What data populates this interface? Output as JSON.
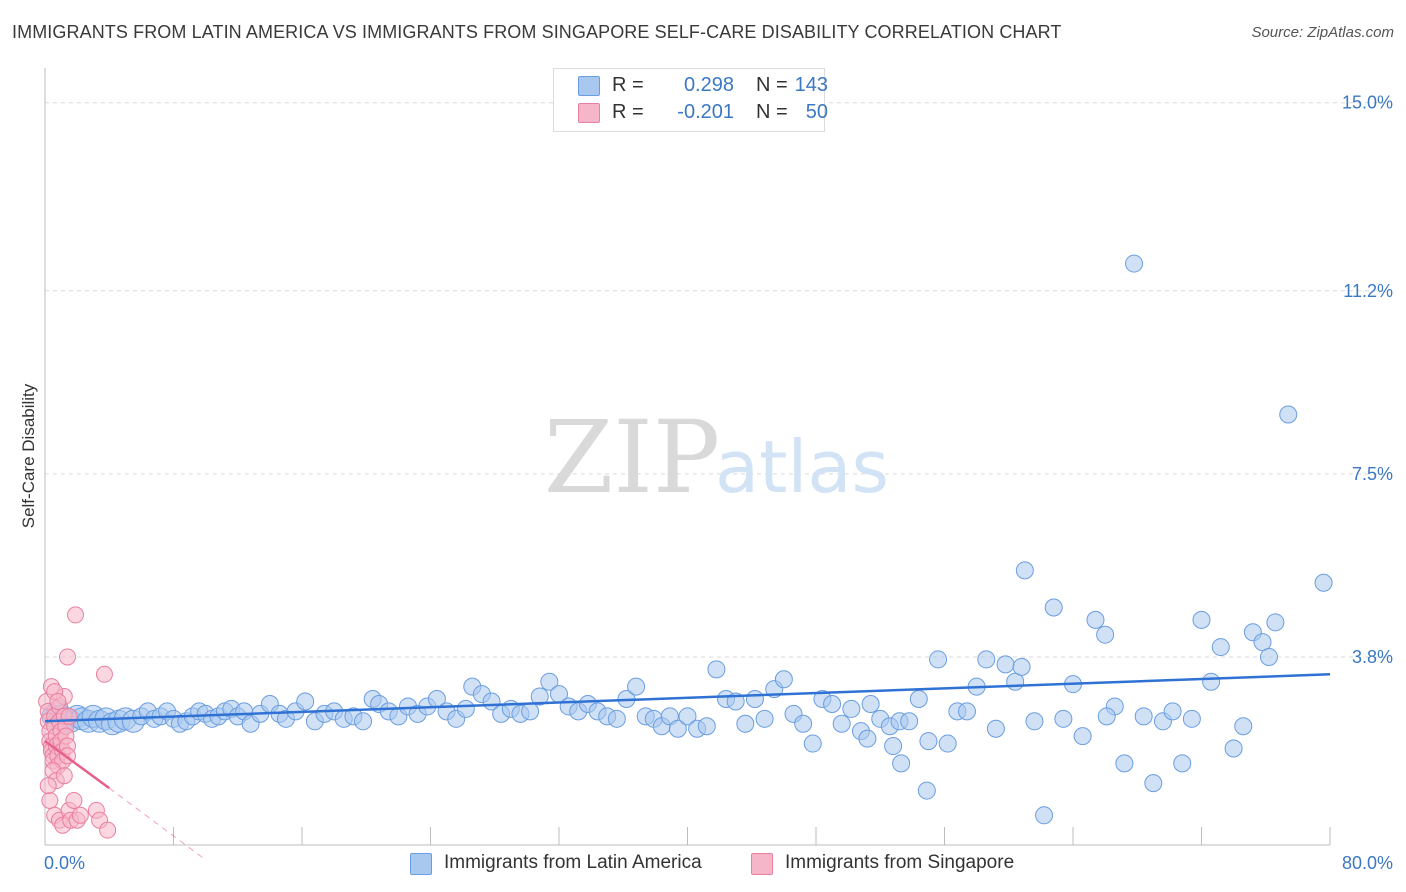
{
  "header": {
    "title": "IMMIGRANTS FROM LATIN AMERICA VS IMMIGRANTS FROM SINGAPORE SELF-CARE DISABILITY CORRELATION CHART",
    "source": "Source: ZipAtlas.com"
  },
  "watermark": {
    "zip": "ZIP",
    "atlas": "atlas"
  },
  "legend": {
    "r_label": "R =",
    "n_label": "N =",
    "series1": {
      "r": "0.298",
      "n": "143"
    },
    "series2": {
      "r": "-0.201",
      "n": "50"
    }
  },
  "bottom_legend": {
    "series1": "Immigrants from Latin America",
    "series2": "Immigrants from Singapore"
  },
  "colors": {
    "series1_fill": "#a9c8ef",
    "series1_stroke": "#6a9ee0",
    "series1_line": "#2f72d4",
    "series2_fill": "#f6b6c9",
    "series2_stroke": "#ea7fa0",
    "series2_line": "#e8608a",
    "axis_text": "#3b78c4",
    "grid": "#d9d9d9"
  },
  "chart_data": {
    "type": "scatter",
    "title": "IMMIGRANTS FROM LATIN AMERICA VS IMMIGRANTS FROM SINGAPORE SELF-CARE DISABILITY CORRELATION CHART",
    "xlabel": "",
    "ylabel": "Self-Care Disability",
    "xlim": [
      0,
      80
    ],
    "ylim": [
      0,
      15.5
    ],
    "x_tick_labels": [
      "0.0%",
      "80.0%"
    ],
    "y_ticks": [
      3.8,
      7.5,
      11.2,
      15.0
    ],
    "y_tick_labels": [
      "3.8%",
      "7.5%",
      "11.2%",
      "15.0%"
    ],
    "grid": true,
    "legend_position": "top-center",
    "series": [
      {
        "name": "Immigrants from Latin America",
        "r": 0.298,
        "n": 143,
        "trend": {
          "x": [
            0,
            80
          ],
          "y": [
            2.5,
            3.45
          ]
        },
        "points": [
          [
            0.5,
            2.6
          ],
          [
            0.8,
            2.7
          ],
          [
            1.0,
            2.6
          ],
          [
            1.3,
            2.55
          ],
          [
            1.6,
            2.5
          ],
          [
            2.0,
            2.6
          ],
          [
            2.3,
            2.55
          ],
          [
            2.7,
            2.5
          ],
          [
            3.0,
            2.6
          ],
          [
            3.4,
            2.5
          ],
          [
            3.8,
            2.55
          ],
          [
            4.2,
            2.45
          ],
          [
            4.6,
            2.5
          ],
          [
            5.0,
            2.55
          ],
          [
            5.5,
            2.5
          ],
          [
            6.0,
            2.6
          ],
          [
            6.4,
            2.7
          ],
          [
            6.8,
            2.55
          ],
          [
            7.2,
            2.6
          ],
          [
            7.6,
            2.7
          ],
          [
            8.0,
            2.55
          ],
          [
            8.4,
            2.45
          ],
          [
            8.8,
            2.5
          ],
          [
            9.2,
            2.6
          ],
          [
            9.6,
            2.7
          ],
          [
            10.0,
            2.65
          ],
          [
            10.4,
            2.55
          ],
          [
            10.8,
            2.6
          ],
          [
            11.2,
            2.7
          ],
          [
            11.6,
            2.75
          ],
          [
            12.0,
            2.6
          ],
          [
            12.4,
            2.7
          ],
          [
            12.8,
            2.45
          ],
          [
            13.4,
            2.65
          ],
          [
            14.0,
            2.85
          ],
          [
            14.6,
            2.65
          ],
          [
            15.0,
            2.55
          ],
          [
            15.6,
            2.7
          ],
          [
            16.2,
            2.9
          ],
          [
            16.8,
            2.5
          ],
          [
            17.4,
            2.65
          ],
          [
            18.0,
            2.7
          ],
          [
            18.6,
            2.55
          ],
          [
            19.2,
            2.6
          ],
          [
            19.8,
            2.5
          ],
          [
            20.4,
            2.95
          ],
          [
            20.8,
            2.85
          ],
          [
            21.4,
            2.7
          ],
          [
            22.0,
            2.6
          ],
          [
            22.6,
            2.8
          ],
          [
            23.2,
            2.65
          ],
          [
            23.8,
            2.8
          ],
          [
            24.4,
            2.95
          ],
          [
            25.0,
            2.7
          ],
          [
            25.6,
            2.55
          ],
          [
            26.2,
            2.75
          ],
          [
            26.6,
            3.2
          ],
          [
            27.2,
            3.05
          ],
          [
            27.8,
            2.9
          ],
          [
            28.4,
            2.65
          ],
          [
            29.0,
            2.75
          ],
          [
            29.6,
            2.65
          ],
          [
            30.2,
            2.7
          ],
          [
            30.8,
            3.0
          ],
          [
            31.4,
            3.3
          ],
          [
            32.0,
            3.05
          ],
          [
            32.6,
            2.8
          ],
          [
            33.2,
            2.7
          ],
          [
            33.8,
            2.85
          ],
          [
            34.4,
            2.7
          ],
          [
            35.0,
            2.6
          ],
          [
            35.6,
            2.55
          ],
          [
            36.2,
            2.95
          ],
          [
            36.8,
            3.2
          ],
          [
            37.4,
            2.6
          ],
          [
            37.9,
            2.55
          ],
          [
            38.4,
            2.4
          ],
          [
            38.9,
            2.6
          ],
          [
            39.4,
            2.35
          ],
          [
            40.0,
            2.6
          ],
          [
            40.6,
            2.35
          ],
          [
            41.2,
            2.4
          ],
          [
            41.8,
            3.55
          ],
          [
            42.4,
            2.95
          ],
          [
            43.0,
            2.9
          ],
          [
            43.6,
            2.45
          ],
          [
            44.2,
            2.95
          ],
          [
            44.8,
            2.55
          ],
          [
            45.4,
            3.15
          ],
          [
            46.0,
            3.35
          ],
          [
            46.6,
            2.65
          ],
          [
            47.2,
            2.45
          ],
          [
            47.8,
            2.05
          ],
          [
            48.4,
            2.95
          ],
          [
            49.0,
            2.85
          ],
          [
            49.6,
            2.45
          ],
          [
            50.2,
            2.75
          ],
          [
            50.8,
            2.3
          ],
          [
            51.4,
            2.85
          ],
          [
            52.0,
            2.55
          ],
          [
            52.6,
            2.4
          ],
          [
            53.2,
            2.5
          ],
          [
            53.8,
            2.5
          ],
          [
            54.4,
            2.95
          ],
          [
            55.0,
            2.1
          ],
          [
            55.6,
            3.75
          ],
          [
            56.2,
            2.05
          ],
          [
            56.8,
            2.7
          ],
          [
            57.4,
            2.7
          ],
          [
            58.0,
            3.2
          ],
          [
            58.6,
            3.75
          ],
          [
            59.2,
            2.35
          ],
          [
            59.8,
            3.65
          ],
          [
            60.4,
            3.3
          ],
          [
            61.0,
            5.55
          ],
          [
            61.6,
            2.5
          ],
          [
            62.2,
            0.6
          ],
          [
            62.8,
            4.8
          ],
          [
            63.4,
            2.55
          ],
          [
            64.0,
            3.25
          ],
          [
            64.6,
            2.2
          ],
          [
            65.4,
            4.55
          ],
          [
            66.0,
            4.25
          ],
          [
            66.6,
            2.8
          ],
          [
            67.2,
            1.65
          ],
          [
            67.8,
            11.75
          ],
          [
            68.4,
            2.6
          ],
          [
            69.0,
            1.25
          ],
          [
            69.6,
            2.5
          ],
          [
            70.2,
            2.7
          ],
          [
            70.8,
            1.65
          ],
          [
            71.4,
            2.55
          ],
          [
            72.0,
            4.55
          ],
          [
            72.6,
            3.3
          ],
          [
            73.2,
            4.0
          ],
          [
            74.0,
            1.95
          ],
          [
            74.6,
            2.4
          ],
          [
            75.2,
            4.3
          ],
          [
            75.8,
            4.1
          ],
          [
            76.2,
            3.8
          ],
          [
            76.6,
            4.5
          ],
          [
            77.4,
            8.7
          ],
          [
            79.6,
            5.3
          ],
          [
            52.8,
            2.0
          ],
          [
            53.3,
            1.65
          ],
          [
            54.9,
            1.1
          ],
          [
            51.2,
            2.15
          ],
          [
            60.8,
            3.6
          ],
          [
            66.1,
            2.6
          ]
        ]
      },
      {
        "name": "Immigrants from Singapore",
        "r": -0.201,
        "n": 50,
        "trend": {
          "x": [
            0,
            4.0
          ],
          "y": [
            2.1,
            1.15
          ]
        },
        "trend_extension": {
          "x": [
            4.0,
            10.0
          ],
          "y": [
            1.15,
            -0.3
          ]
        },
        "points": [
          [
            0.1,
            2.9
          ],
          [
            0.2,
            2.7
          ],
          [
            0.2,
            2.5
          ],
          [
            0.3,
            2.3
          ],
          [
            0.3,
            2.1
          ],
          [
            0.4,
            2.0
          ],
          [
            0.4,
            1.9
          ],
          [
            0.5,
            1.8
          ],
          [
            0.5,
            1.7
          ],
          [
            0.6,
            2.6
          ],
          [
            0.6,
            2.4
          ],
          [
            0.7,
            2.2
          ],
          [
            0.7,
            2.0
          ],
          [
            0.8,
            1.8
          ],
          [
            0.8,
            1.6
          ],
          [
            0.9,
            2.8
          ],
          [
            0.9,
            2.5
          ],
          [
            1.0,
            2.3
          ],
          [
            1.0,
            2.1
          ],
          [
            1.1,
            1.9
          ],
          [
            1.1,
            1.7
          ],
          [
            1.2,
            3.0
          ],
          [
            1.2,
            2.6
          ],
          [
            1.3,
            2.4
          ],
          [
            1.3,
            2.2
          ],
          [
            1.4,
            2.0
          ],
          [
            1.4,
            1.8
          ],
          [
            0.4,
            3.2
          ],
          [
            0.6,
            3.1
          ],
          [
            0.5,
            1.5
          ],
          [
            0.7,
            1.3
          ],
          [
            0.3,
            0.9
          ],
          [
            0.6,
            0.6
          ],
          [
            0.9,
            0.5
          ],
          [
            1.1,
            0.4
          ],
          [
            1.5,
            0.7
          ],
          [
            1.6,
            0.5
          ],
          [
            1.8,
            0.9
          ],
          [
            2.0,
            0.5
          ],
          [
            2.2,
            0.6
          ],
          [
            3.2,
            0.7
          ],
          [
            3.4,
            0.5
          ],
          [
            3.9,
            0.3
          ],
          [
            1.4,
            3.8
          ],
          [
            1.9,
            4.65
          ],
          [
            3.7,
            3.45
          ],
          [
            0.2,
            1.2
          ],
          [
            1.2,
            1.4
          ],
          [
            0.8,
            2.9
          ],
          [
            1.5,
            2.6
          ]
        ]
      }
    ]
  }
}
